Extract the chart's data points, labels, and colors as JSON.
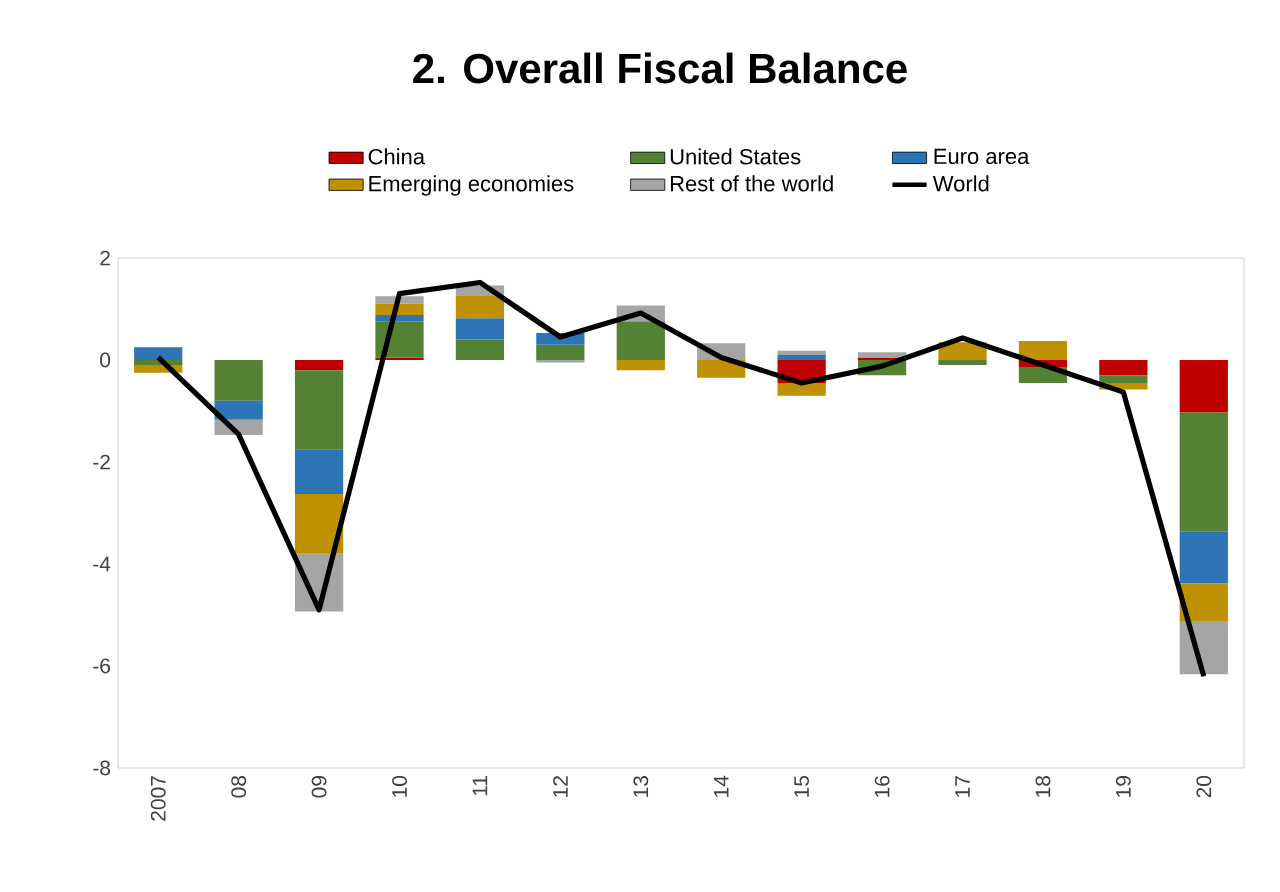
{
  "chart_data": {
    "type": "bar",
    "title": "2. Overall Fiscal Balance",
    "stacked": true,
    "legend": "top",
    "categories": [
      "2007",
      "08",
      "09",
      "10",
      "11",
      "12",
      "13",
      "14",
      "15",
      "16",
      "17",
      "18",
      "19",
      "20"
    ],
    "ylim": [
      -8,
      2
    ],
    "yticks": [
      -8,
      -6,
      -4,
      -2,
      0,
      2
    ],
    "series": [
      {
        "name": "China",
        "color": "#c00000",
        "values": [
          0,
          0,
          -0.2,
          0.05,
          0,
          0,
          0,
          0,
          -0.45,
          0.05,
          0,
          -0.15,
          -0.3,
          -1.03
        ]
      },
      {
        "name": "United States",
        "color": "#548235",
        "values": [
          -0.1,
          -0.8,
          -1.55,
          0.71,
          0.4,
          0.3,
          0.76,
          0,
          0,
          -0.3,
          -0.1,
          -0.3,
          -0.15,
          -2.34
        ]
      },
      {
        "name": "Euro area",
        "color": "#2e75b6",
        "values": [
          0.25,
          -0.37,
          -0.88,
          0.12,
          0.42,
          0.23,
          0,
          0,
          0.1,
          0,
          0,
          0,
          0,
          -1.01
        ]
      },
      {
        "name": "Emerging economies",
        "color": "#bf9000",
        "values": [
          -0.15,
          0,
          -1.17,
          0.22,
          0.45,
          0,
          -0.2,
          -0.35,
          -0.25,
          0,
          0.35,
          0.37,
          -0.13,
          -0.74
        ]
      },
      {
        "name": "Rest of the world",
        "color": "#a5a5a5",
        "values": [
          0,
          -0.3,
          -1.13,
          0.15,
          0.19,
          -0.05,
          0.31,
          0.33,
          0.08,
          0.1,
          null,
          0,
          0,
          -1.04
        ]
      },
      {
        "name": "World",
        "color": "#000000",
        "type": "line",
        "values": [
          0.05,
          -1.46,
          -4.9,
          1.3,
          1.52,
          0.45,
          0.92,
          0.05,
          -0.45,
          -0.12,
          0.43,
          -0.1,
          -0.63,
          -6.2
        ]
      }
    ]
  }
}
